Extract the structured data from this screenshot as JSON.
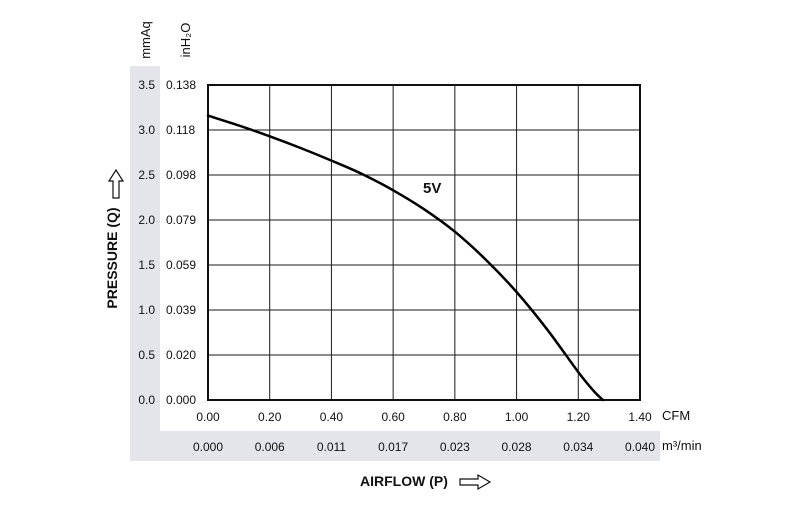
{
  "chart_data": {
    "type": "line",
    "title": "",
    "xlabel": "AIRFLOW (P)",
    "ylabel": "PRESSURE (Q)",
    "xlim": [
      0,
      1.4
    ],
    "ylim": [
      0,
      3.5
    ],
    "grid": true,
    "x_units": [
      "CFM",
      "m³/min"
    ],
    "y_units": [
      "mmAq",
      "inH₂O"
    ],
    "x_ticks_cfm": [
      "0.00",
      "0.20",
      "0.40",
      "0.60",
      "0.80",
      "1.00",
      "1.20",
      "1.40"
    ],
    "x_ticks_m3min": [
      "0.000",
      "0.006",
      "0.011",
      "0.017",
      "0.023",
      "0.028",
      "0.034",
      "0.040"
    ],
    "y_ticks_mmaq": [
      "0.0",
      "0.5",
      "1.0",
      "1.5",
      "2.0",
      "2.5",
      "3.0",
      "3.5"
    ],
    "y_ticks_inh2o": [
      "0.000",
      "0.020",
      "0.039",
      "0.059",
      "0.079",
      "0.098",
      "0.118",
      "0.138"
    ],
    "series": [
      {
        "name": "5V",
        "x": [
          0.0,
          0.1,
          0.2,
          0.3,
          0.4,
          0.5,
          0.6,
          0.7,
          0.8,
          0.9,
          1.0,
          1.1,
          1.2,
          1.25,
          1.28
        ],
        "y": [
          3.16,
          3.05,
          2.93,
          2.8,
          2.66,
          2.51,
          2.33,
          2.12,
          1.87,
          1.56,
          1.2,
          0.78,
          0.31,
          0.1,
          0.0
        ]
      }
    ]
  },
  "colors": {
    "curve": "#000000",
    "grid": "#1a1a1a",
    "label_band": "#e3e5ea"
  },
  "icons": {
    "y_arrow": "outline-arrow-up-icon",
    "x_arrow": "outline-arrow-right-icon"
  }
}
